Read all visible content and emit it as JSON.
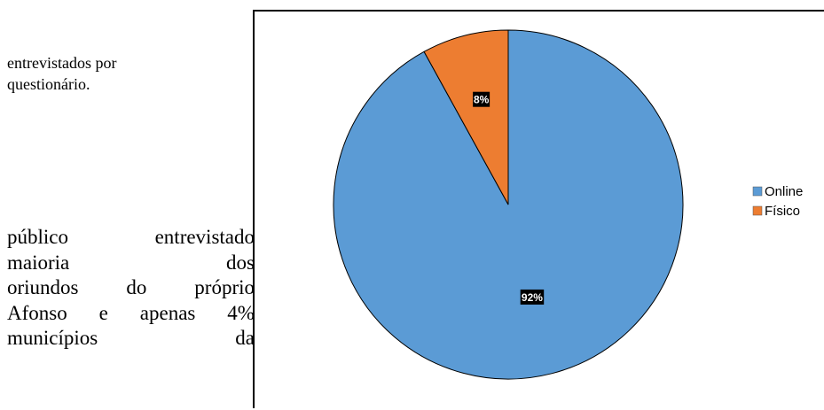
{
  "document": {
    "caption_lines": [
      "entrevistados por",
      "questionário."
    ],
    "body_lines": [
      [
        "público",
        "entrevistado"
      ],
      [
        "maioria",
        "dos"
      ],
      [
        "oriundos",
        "do",
        "próprio"
      ],
      [
        "Afonso",
        "e",
        "apenas",
        "4%"
      ],
      [
        "municípios",
        "da"
      ]
    ]
  },
  "chart_data": {
    "type": "pie",
    "categories": [
      "Online",
      "Físico"
    ],
    "values": [
      92,
      8
    ],
    "labels": [
      "92%",
      "8%"
    ],
    "colors": [
      "#5b9bd5",
      "#ed7d31"
    ],
    "start": "12 o'clock, clockwise",
    "legend": {
      "position": "right",
      "entries": [
        "Online",
        "Físico"
      ]
    }
  }
}
